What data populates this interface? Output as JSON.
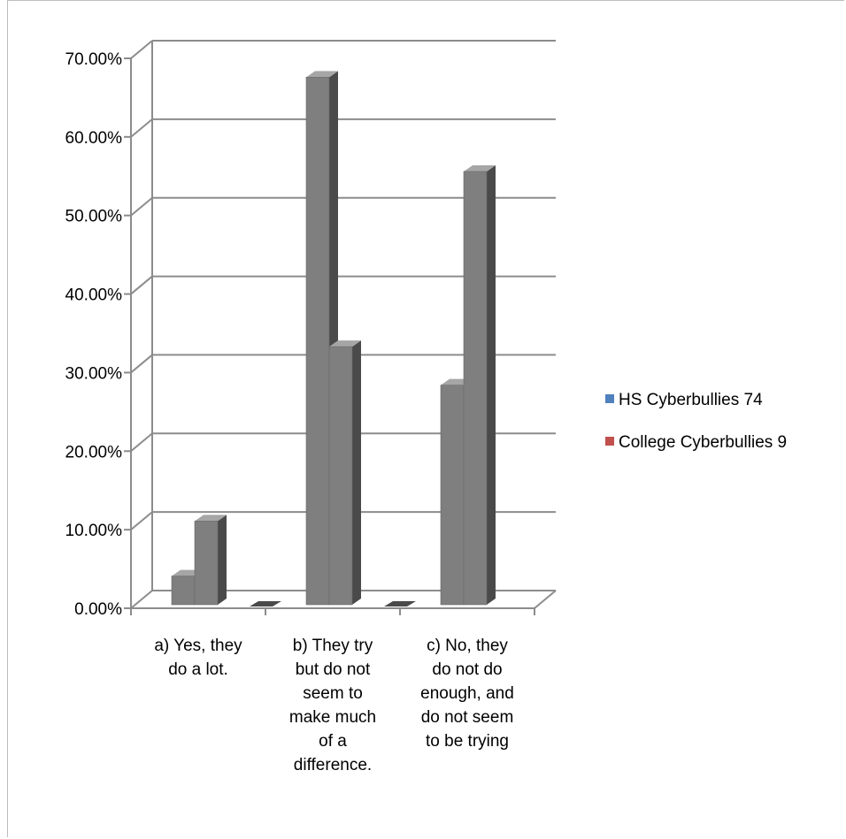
{
  "chart_data": {
    "type": "bar",
    "style": "3d-clustered-column",
    "categories": [
      [
        "a) Yes, they",
        "do a lot."
      ],
      [
        "b) They try",
        "but do not",
        "seem to",
        "make much",
        "of a",
        "difference."
      ],
      [
        "c) No, they",
        "do not do",
        "enough, and",
        "do not seem",
        "to be trying"
      ]
    ],
    "x": [
      "a) Yes, they do a lot.",
      "b) They try but do not seem to make much of a difference.",
      "c) No, they do not do enough, and do not seem to be trying"
    ],
    "series": [
      {
        "name": "HS Cyberbullies 74",
        "values": [
          4.1,
          67.6,
          28.4
        ],
        "legend_color": "#4F81BD"
      },
      {
        "name": "College Cyberbullies 9",
        "values": [
          11.1,
          33.3,
          55.6
        ],
        "legend_color": "#C0504D"
      }
    ],
    "bar_color": "#7f7f7f",
    "ylim": [
      0,
      70
    ],
    "yticks": [
      "0.00%",
      "10.00%",
      "20.00%",
      "30.00%",
      "40.00%",
      "50.00%",
      "60.00%",
      "70.00%"
    ],
    "ytick_values": [
      0,
      10,
      20,
      30,
      40,
      50,
      60,
      70
    ],
    "grid": true,
    "legend_position": "right",
    "title": "",
    "xlabel": "",
    "ylabel": ""
  }
}
